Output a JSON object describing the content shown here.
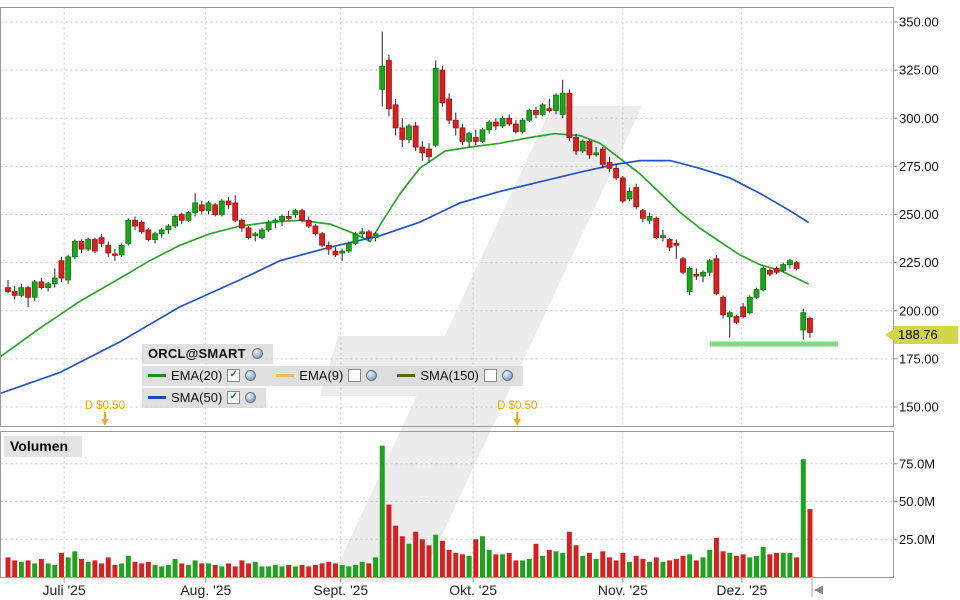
{
  "volume_pane": {
    "label": "Volumen"
  },
  "legend": {
    "items": [
      {
        "label": "EMA(20)",
        "color": "#1e8f1e",
        "checked": true
      },
      {
        "label": "EMA(9)",
        "color": "#eebf55",
        "checked": false
      },
      {
        "label": "SMA(150)",
        "color": "#55681d",
        "checked": false
      },
      {
        "label": "SMA(50)",
        "color": "#1f45c8",
        "checked": true
      }
    ]
  },
  "chart_data": {
    "type": "candlestick",
    "symbol": "ORCL@SMART",
    "grid": true,
    "legend_position": "bottom-left-of-price-pane",
    "price_ticks": [
      {
        "value": 350,
        "label": "350.00"
      },
      {
        "value": 325,
        "label": "325.00"
      },
      {
        "value": 300,
        "label": "300.00"
      },
      {
        "value": 275,
        "label": "275.00"
      },
      {
        "value": 250,
        "label": "250.00"
      },
      {
        "value": 225,
        "label": "225.00"
      },
      {
        "value": 200,
        "label": "200.00"
      },
      {
        "value": 175,
        "label": "175.00"
      },
      {
        "value": 150,
        "label": "150.00"
      }
    ],
    "volume_ticks": [
      {
        "value": 75,
        "label": "75.0M"
      },
      {
        "value": 50,
        "label": "50.0M"
      },
      {
        "value": 25,
        "label": "25.0M"
      }
    ],
    "ylim_price": [
      140,
      357
    ],
    "ylim_volume_millions": [
      0,
      96
    ],
    "months": [
      {
        "label": "Juli '25",
        "i": 8.4
      },
      {
        "label": "Aug. '25",
        "i": 29.6
      },
      {
        "label": "Sept. '25",
        "i": 49.8
      },
      {
        "label": "Okt. '25",
        "i": 69.6
      },
      {
        "label": "Nov. '25",
        "i": 92.0
      },
      {
        "label": "Dez. '25",
        "i": 109.8
      }
    ],
    "colors": {
      "up": "#1fa21f",
      "up_border": "#0b7a0b",
      "down": "#d32222",
      "down_border": "#9e1414",
      "wick": "#222222",
      "event": "#f0a500"
    },
    "ohlc": [
      [
        212,
        216,
        209,
        210
      ],
      [
        210,
        213,
        206,
        208
      ],
      [
        208,
        214,
        207,
        212
      ],
      [
        212,
        213,
        202,
        207
      ],
      [
        207,
        216,
        205,
        215
      ],
      [
        215,
        217,
        211,
        212
      ],
      [
        212,
        215,
        210,
        214
      ],
      [
        214,
        222,
        212,
        217
      ],
      [
        226,
        228,
        215,
        217
      ],
      [
        216,
        229,
        214,
        228
      ],
      [
        228,
        237,
        227,
        236
      ],
      [
        236,
        237,
        230,
        232
      ],
      [
        232,
        238,
        231,
        237
      ],
      [
        237,
        238,
        230,
        231
      ],
      [
        238,
        240,
        233,
        235
      ],
      [
        234,
        236,
        228,
        230
      ],
      [
        229.5,
        232,
        226,
        229
      ],
      [
        229,
        235,
        228,
        234
      ],
      [
        235,
        248,
        234,
        247
      ],
      [
        247,
        249,
        242,
        244
      ],
      [
        246,
        247,
        240,
        241
      ],
      [
        242,
        243,
        236,
        237
      ],
      [
        237,
        241,
        235,
        240
      ],
      [
        240,
        243,
        238,
        242
      ],
      [
        242,
        245,
        240,
        244
      ],
      [
        244,
        250,
        243,
        249
      ],
      [
        250,
        251,
        245,
        247
      ],
      [
        247,
        252,
        246,
        251
      ],
      [
        251,
        261,
        249,
        256
      ],
      [
        255,
        257,
        250,
        252
      ],
      [
        252,
        257,
        250,
        256
      ],
      [
        255,
        256,
        249,
        250
      ],
      [
        250,
        258,
        249,
        257
      ],
      [
        257,
        259,
        253,
        255
      ],
      [
        256,
        260,
        246,
        247
      ],
      [
        247,
        248,
        241,
        243
      ],
      [
        243,
        244,
        237,
        238
      ],
      [
        239,
        241,
        236,
        240
      ],
      [
        238,
        243,
        237,
        242
      ],
      [
        242,
        247,
        241,
        246
      ],
      [
        246,
        248,
        243,
        247
      ],
      [
        247,
        250,
        244,
        249
      ],
      [
        249,
        252,
        247,
        248
      ],
      [
        250,
        253,
        248,
        252
      ],
      [
        252,
        253,
        246,
        247
      ],
      [
        247,
        249,
        243,
        244
      ],
      [
        244,
        245,
        239,
        240
      ],
      [
        240,
        241,
        233,
        234
      ],
      [
        234,
        236,
        229,
        232
      ],
      [
        231,
        233,
        228,
        229
      ],
      [
        230,
        232,
        226,
        231
      ],
      [
        231,
        236,
        230,
        235
      ],
      [
        235,
        241,
        234,
        240
      ],
      [
        240,
        243,
        238,
        241
      ],
      [
        241,
        242,
        236,
        238
      ],
      [
        238,
        241,
        236,
        240
      ],
      [
        315,
        345,
        306,
        327
      ],
      [
        330,
        333,
        301,
        305
      ],
      [
        307,
        310,
        291,
        295
      ],
      [
        295,
        300,
        285,
        289
      ],
      [
        289,
        297,
        287,
        296
      ],
      [
        296,
        298,
        283,
        285
      ],
      [
        285,
        288,
        278,
        282
      ],
      [
        284,
        287,
        277,
        280
      ],
      [
        286,
        330,
        285,
        326
      ],
      [
        325,
        327,
        306,
        308
      ],
      [
        310,
        313,
        297,
        299
      ],
      [
        299,
        303,
        291,
        295
      ],
      [
        295,
        297,
        286,
        288
      ],
      [
        288,
        293,
        285,
        292
      ],
      [
        290,
        294,
        286,
        288
      ],
      [
        288,
        295,
        287,
        294
      ],
      [
        294,
        299,
        292,
        298
      ],
      [
        298,
        300,
        294,
        296
      ],
      [
        296,
        301,
        295,
        300
      ],
      [
        300,
        302,
        296,
        297
      ],
      [
        297,
        299,
        292,
        293
      ],
      [
        293,
        300,
        292,
        299
      ],
      [
        299,
        305,
        298,
        304
      ],
      [
        304,
        306,
        300,
        302
      ],
      [
        302,
        308,
        301,
        307
      ],
      [
        305,
        310,
        303,
        304
      ],
      [
        304,
        313,
        302,
        312
      ],
      [
        302,
        320,
        300,
        313
      ],
      [
        313,
        315,
        288,
        290
      ],
      [
        290,
        292,
        281,
        283
      ],
      [
        283,
        289,
        282,
        288
      ],
      [
        288,
        289,
        279,
        281
      ],
      [
        281,
        285,
        280,
        282
      ],
      [
        284,
        285,
        274,
        276
      ],
      [
        277,
        280,
        272,
        274
      ],
      [
        274,
        276,
        268,
        269
      ],
      [
        269,
        270,
        256,
        257
      ],
      [
        258,
        264,
        257,
        262
      ],
      [
        264,
        266,
        253,
        254
      ],
      [
        252,
        253,
        246,
        248
      ],
      [
        247,
        251,
        245,
        249
      ],
      [
        248,
        249,
        237,
        238
      ],
      [
        238,
        242,
        236,
        239
      ],
      [
        237,
        238,
        231,
        233
      ],
      [
        235,
        237,
        227,
        234
      ],
      [
        227,
        228,
        219,
        220
      ],
      [
        210,
        223,
        208,
        222
      ],
      [
        219,
        222,
        216,
        218
      ],
      [
        218,
        221,
        215,
        220
      ],
      [
        220,
        227,
        218,
        226
      ],
      [
        227,
        229,
        208,
        209
      ],
      [
        207,
        208,
        196,
        198
      ],
      [
        197,
        200,
        186,
        199
      ],
      [
        197,
        198,
        193,
        194
      ],
      [
        202,
        204,
        196,
        197
      ],
      [
        199,
        208,
        198,
        207
      ],
      [
        207,
        212,
        206,
        211
      ],
      [
        211,
        223,
        210,
        222
      ],
      [
        221,
        222,
        218,
        219
      ],
      [
        222,
        223,
        219,
        220
      ],
      [
        221,
        225,
        220,
        224
      ],
      [
        224,
        227,
        222,
        226
      ],
      [
        225,
        226,
        221,
        222
      ],
      [
        190,
        201,
        185,
        199
      ],
      [
        196,
        197,
        186,
        188.76
      ]
    ],
    "volumes_millions": [
      13,
      11,
      10,
      11,
      9,
      12,
      9,
      8,
      16,
      13,
      17,
      12,
      10,
      11,
      9,
      13,
      8,
      9,
      14,
      10,
      9,
      10,
      8,
      7,
      8,
      12,
      9,
      8,
      11,
      9,
      9,
      8,
      7,
      9,
      7,
      11,
      9,
      10,
      7,
      7,
      8,
      7,
      8,
      7,
      8,
      7,
      8,
      9,
      10,
      9,
      8,
      7,
      8,
      10,
      9,
      13,
      87,
      48,
      34,
      27,
      22,
      30,
      25,
      21,
      28,
      24,
      18,
      16,
      15,
      14,
      25,
      27,
      18,
      15,
      15,
      16,
      11,
      11,
      12,
      22,
      14,
      18,
      17,
      16,
      30,
      21,
      14,
      16,
      12,
      17,
      13,
      11,
      16,
      10,
      14,
      12,
      10,
      13,
      10,
      11,
      12,
      14,
      15,
      11,
      13,
      18,
      26,
      17,
      16,
      14,
      15,
      13,
      14,
      20,
      15,
      16,
      16,
      16,
      13,
      78,
      45
    ],
    "overlays": {
      "ema20": {
        "label": "EMA(20)",
        "color": "#2da32d",
        "points": [
          [
            -1.2,
            176
          ],
          [
            4.8,
            191
          ],
          [
            10.8,
            205
          ],
          [
            16.8,
            217
          ],
          [
            21.2,
            226
          ],
          [
            25.7,
            234
          ],
          [
            30.2,
            240
          ],
          [
            34.7,
            244
          ],
          [
            39.2,
            246
          ],
          [
            43.7,
            247
          ],
          [
            48.2,
            245
          ],
          [
            51.9,
            240
          ],
          [
            54.2,
            236
          ],
          [
            56.1,
            247
          ],
          [
            58.7,
            261
          ],
          [
            61.6,
            274
          ],
          [
            65.4,
            283
          ],
          [
            69.1,
            285
          ],
          [
            73.6,
            287
          ],
          [
            78.1,
            290
          ],
          [
            81.8,
            292
          ],
          [
            85.6,
            291
          ],
          [
            88.6,
            287
          ],
          [
            91.6,
            279
          ],
          [
            94.6,
            271
          ],
          [
            97.6,
            261
          ],
          [
            100.6,
            251
          ],
          [
            103.5,
            243
          ],
          [
            106.5,
            236
          ],
          [
            109.5,
            229
          ],
          [
            112.5,
            224
          ],
          [
            115.5,
            221
          ],
          [
            118.5,
            216
          ],
          [
            119.7,
            214
          ]
        ]
      },
      "sma50": {
        "label": "SMA(50)",
        "color": "#2353c4",
        "points": [
          [
            -1.2,
            157
          ],
          [
            7.8,
            168
          ],
          [
            16.8,
            184
          ],
          [
            25.7,
            202
          ],
          [
            34.7,
            216
          ],
          [
            40.7,
            226
          ],
          [
            48.2,
            233
          ],
          [
            55.7,
            239
          ],
          [
            61.6,
            246
          ],
          [
            67.6,
            256
          ],
          [
            73.6,
            262
          ],
          [
            79.6,
            267
          ],
          [
            85.6,
            272
          ],
          [
            90.8,
            276
          ],
          [
            94.6,
            278
          ],
          [
            99.1,
            278
          ],
          [
            103.5,
            274
          ],
          [
            108,
            269
          ],
          [
            112.5,
            261
          ],
          [
            117,
            252
          ],
          [
            119.7,
            246
          ]
        ]
      },
      "support_line": {
        "i1": 105,
        "i2": 124.2,
        "price": 182.7,
        "color": "#72d572"
      }
    },
    "events": [
      {
        "label": "D $0.50",
        "i": 14.5
      },
      {
        "label": "D $0.50",
        "i": 76.2
      }
    ],
    "last_price": {
      "label": "188.76",
      "value": 188.76,
      "bg": "#d3d54a"
    }
  }
}
